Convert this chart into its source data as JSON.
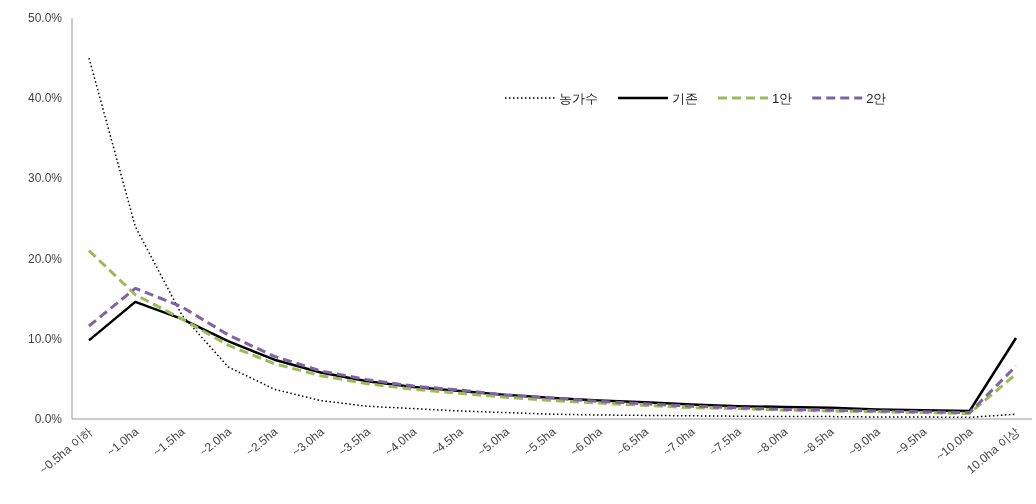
{
  "chart_data": {
    "type": "line",
    "categories": [
      "~0.5ha 이하",
      "~1.0ha",
      "~1.5ha",
      "~2.0ha",
      "~2.5ha",
      "~3.0ha",
      "~3.5ha",
      "~4.0ha",
      "~4.5ha",
      "~5.0ha",
      "~5.5ha",
      "~6.0ha",
      "~6.5ha",
      "~7.0ha",
      "~7.5ha",
      "~8.0ha",
      "~8.5ha",
      "~9.0ha",
      "~9.5ha",
      "~10.0ha",
      "10.0ha 이상"
    ],
    "series": [
      {
        "name": "농가수",
        "color": "#000000",
        "line_style": "dotted",
        "values": [
          45.0,
          24.0,
          13.0,
          6.5,
          3.7,
          2.3,
          1.6,
          1.3,
          1.0,
          0.8,
          0.6,
          0.5,
          0.45,
          0.4,
          0.35,
          0.3,
          0.3,
          0.25,
          0.25,
          0.2,
          0.6
        ]
      },
      {
        "name": "기존",
        "color": "#000000",
        "line_style": "solid",
        "values": [
          9.8,
          14.6,
          12.5,
          9.7,
          7.4,
          5.8,
          4.7,
          4.0,
          3.5,
          3.0,
          2.6,
          2.3,
          2.1,
          1.8,
          1.6,
          1.5,
          1.4,
          1.2,
          1.1,
          1.0,
          10.1
        ]
      },
      {
        "name": "1안",
        "color": "#9bbb59",
        "line_style": "dashed",
        "values": [
          21.0,
          15.5,
          12.5,
          9.2,
          6.9,
          5.4,
          4.4,
          3.7,
          3.2,
          2.7,
          2.3,
          2.0,
          1.7,
          1.4,
          1.3,
          1.1,
          1.0,
          0.9,
          0.8,
          0.7,
          5.6
        ]
      },
      {
        "name": "2안",
        "color": "#8064a2",
        "line_style": "dashed",
        "values": [
          11.6,
          16.3,
          14.0,
          10.5,
          7.8,
          6.0,
          4.9,
          4.1,
          3.6,
          3.0,
          2.6,
          2.2,
          1.9,
          1.6,
          1.4,
          1.2,
          1.1,
          1.0,
          0.9,
          0.8,
          6.6
        ]
      }
    ],
    "ylim": [
      0,
      50
    ],
    "yticks": [
      {
        "value": 0,
        "label": "0.0%"
      },
      {
        "value": 10,
        "label": "10.0%"
      },
      {
        "value": 20,
        "label": "20.0%"
      },
      {
        "value": 30,
        "label": "30.0%"
      },
      {
        "value": 40,
        "label": "40.0%"
      },
      {
        "value": 50,
        "label": "50.0%"
      }
    ],
    "legend": "top right"
  }
}
